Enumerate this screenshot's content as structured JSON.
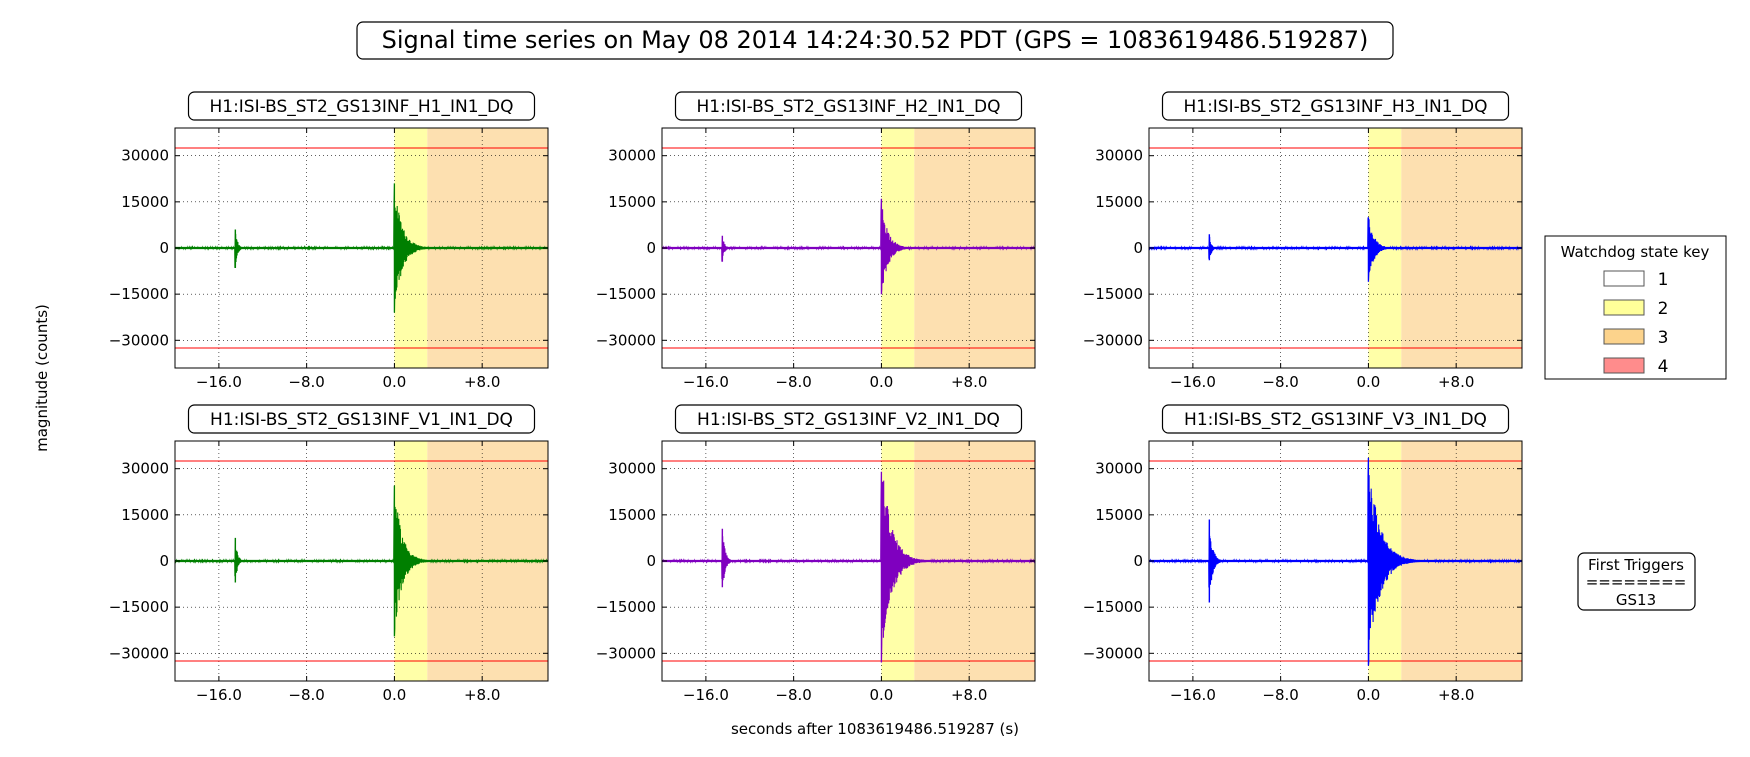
{
  "figure": {
    "title": "Signal time series on May 08 2014 14:24:30.52 PDT (GPS = 1083619486.519287)",
    "xlabel": "seconds after 1083619486.519287 (s)",
    "ylabel": "magnitude (counts)"
  },
  "legend": {
    "title": "Watchdog state key",
    "placement": "right",
    "items": [
      {
        "label": "1",
        "color": "#ffffff"
      },
      {
        "label": "2",
        "color": "#ffff99"
      },
      {
        "label": "3",
        "color": "#fcd38c"
      },
      {
        "label": "4",
        "color": "#ff8c8c"
      }
    ]
  },
  "first_triggers": {
    "line1": "First Triggers",
    "line2": "========",
    "line3": "GS13"
  },
  "colors": {
    "threshold": "#ff0000",
    "state2": "#ffffa8",
    "state3": "#fde0b0",
    "H1": "#007f00",
    "H2": "#7f00bf",
    "H3": "#0000ff",
    "V1": "#007f00",
    "V2": "#7f00bf",
    "V3": "#0000ff"
  },
  "chart_data": [
    {
      "type": "line",
      "title": "H1:ISI-BS_ST2_GS13INF_H1_IN1_DQ",
      "color_key": "H1",
      "xlim": [
        -20,
        14
      ],
      "ylim": [
        -39000,
        39000
      ],
      "xticks": [
        -16,
        -8,
        0,
        8
      ],
      "xtick_labels": [
        "−16.0",
        "−8.0",
        "0.0",
        "+8.0"
      ],
      "yticks": [
        30000,
        15000,
        0,
        -15000,
        -30000
      ],
      "ytick_labels": [
        "30000",
        "15000",
        "0",
        "−15000",
        "−30000"
      ],
      "thresholds": [
        32500,
        -32500
      ],
      "state_bands": [
        {
          "state": 2,
          "x": [
            0,
            3
          ]
        },
        {
          "state": 3,
          "x": [
            3,
            14
          ]
        }
      ],
      "events": [
        {
          "t": -14.5,
          "peak_pos": 6000,
          "peak_neg": -6500,
          "decay": 0.2
        },
        {
          "t": 0.0,
          "peak_pos": 21000,
          "peak_neg": -21000,
          "decay": 0.7
        }
      ],
      "grid": true
    },
    {
      "type": "line",
      "title": "H1:ISI-BS_ST2_GS13INF_H2_IN1_DQ",
      "color_key": "H2",
      "xlim": [
        -20,
        14
      ],
      "ylim": [
        -39000,
        39000
      ],
      "xticks": [
        -16,
        -8,
        0,
        8
      ],
      "xtick_labels": [
        "−16.0",
        "−8.0",
        "0.0",
        "+8.0"
      ],
      "yticks": [
        30000,
        15000,
        0,
        -15000,
        -30000
      ],
      "ytick_labels": [
        "30000",
        "15000",
        "0",
        "−15000",
        "−30000"
      ],
      "thresholds": [
        32500,
        -32500
      ],
      "state_bands": [
        {
          "state": 2,
          "x": [
            0,
            3
          ]
        },
        {
          "state": 3,
          "x": [
            3,
            14
          ]
        }
      ],
      "events": [
        {
          "t": -14.5,
          "peak_pos": 4000,
          "peak_neg": -4500,
          "decay": 0.2
        },
        {
          "t": 0.0,
          "peak_pos": 16000,
          "peak_neg": -15000,
          "decay": 0.6
        }
      ],
      "grid": true
    },
    {
      "type": "line",
      "title": "H1:ISI-BS_ST2_GS13INF_H3_IN1_DQ",
      "color_key": "H3",
      "xlim": [
        -20,
        14
      ],
      "ylim": [
        -39000,
        39000
      ],
      "xticks": [
        -16,
        -8,
        0,
        8
      ],
      "xtick_labels": [
        "−16.0",
        "−8.0",
        "0.0",
        "+8.0"
      ],
      "yticks": [
        30000,
        15000,
        0,
        -15000,
        -30000
      ],
      "ytick_labels": [
        "30000",
        "15000",
        "0",
        "−15000",
        "−30000"
      ],
      "thresholds": [
        32500,
        -32500
      ],
      "state_bands": [
        {
          "state": 2,
          "x": [
            0,
            3
          ]
        },
        {
          "state": 3,
          "x": [
            3,
            14
          ]
        }
      ],
      "events": [
        {
          "t": -14.5,
          "peak_pos": 4500,
          "peak_neg": -4000,
          "decay": 0.2
        },
        {
          "t": 0.0,
          "peak_pos": 10000,
          "peak_neg": -11000,
          "decay": 0.5
        }
      ],
      "grid": true
    },
    {
      "type": "line",
      "title": "H1:ISI-BS_ST2_GS13INF_V1_IN1_DQ",
      "color_key": "V1",
      "xlim": [
        -20,
        14
      ],
      "ylim": [
        -39000,
        39000
      ],
      "xticks": [
        -16,
        -8,
        0,
        8
      ],
      "xtick_labels": [
        "−16.0",
        "−8.0",
        "0.0",
        "+8.0"
      ],
      "yticks": [
        30000,
        15000,
        0,
        -15000,
        -30000
      ],
      "ytick_labels": [
        "30000",
        "15000",
        "0",
        "−15000",
        "−30000"
      ],
      "thresholds": [
        32500,
        -32500
      ],
      "state_bands": [
        {
          "state": 2,
          "x": [
            0,
            3
          ]
        },
        {
          "state": 3,
          "x": [
            3,
            14
          ]
        }
      ],
      "events": [
        {
          "t": -14.5,
          "peak_pos": 7500,
          "peak_neg": -7000,
          "decay": 0.2
        },
        {
          "t": 0.0,
          "peak_pos": 24500,
          "peak_neg": -24500,
          "decay": 0.7
        }
      ],
      "grid": true
    },
    {
      "type": "line",
      "title": "H1:ISI-BS_ST2_GS13INF_V2_IN1_DQ",
      "color_key": "V2",
      "xlim": [
        -20,
        14
      ],
      "ylim": [
        -39000,
        39000
      ],
      "xticks": [
        -16,
        -8,
        0,
        8
      ],
      "xtick_labels": [
        "−16.0",
        "−8.0",
        "0.0",
        "+8.0"
      ],
      "yticks": [
        30000,
        15000,
        0,
        -15000,
        -30000
      ],
      "ytick_labels": [
        "30000",
        "15000",
        "0",
        "−15000",
        "−30000"
      ],
      "thresholds": [
        32500,
        -32500
      ],
      "state_bands": [
        {
          "state": 2,
          "x": [
            0,
            3
          ]
        },
        {
          "state": 3,
          "x": [
            3,
            14
          ]
        }
      ],
      "events": [
        {
          "t": -14.5,
          "peak_pos": 10500,
          "peak_neg": -8500,
          "decay": 0.25
        },
        {
          "t": 0.0,
          "peak_pos": 29000,
          "peak_neg": -33000,
          "decay": 0.9
        }
      ],
      "grid": true
    },
    {
      "type": "line",
      "title": "H1:ISI-BS_ST2_GS13INF_V3_IN1_DQ",
      "color_key": "V3",
      "xlim": [
        -20,
        14
      ],
      "ylim": [
        -39000,
        39000
      ],
      "xticks": [
        -16,
        -8,
        0,
        8
      ],
      "xtick_labels": [
        "−16.0",
        "−8.0",
        "0.0",
        "+8.0"
      ],
      "yticks": [
        30000,
        15000,
        0,
        -15000,
        -30000
      ],
      "ytick_labels": [
        "30000",
        "15000",
        "0",
        "−15000",
        "−30000"
      ],
      "thresholds": [
        32500,
        -32500
      ],
      "state_bands": [
        {
          "state": 2,
          "x": [
            0,
            3
          ]
        },
        {
          "state": 3,
          "x": [
            3,
            14
          ]
        }
      ],
      "events": [
        {
          "t": -14.5,
          "peak_pos": 13500,
          "peak_neg": -13500,
          "decay": 0.3
        },
        {
          "t": 0.0,
          "peak_pos": 33500,
          "peak_neg": -34000,
          "decay": 1.0
        }
      ],
      "grid": true
    }
  ]
}
